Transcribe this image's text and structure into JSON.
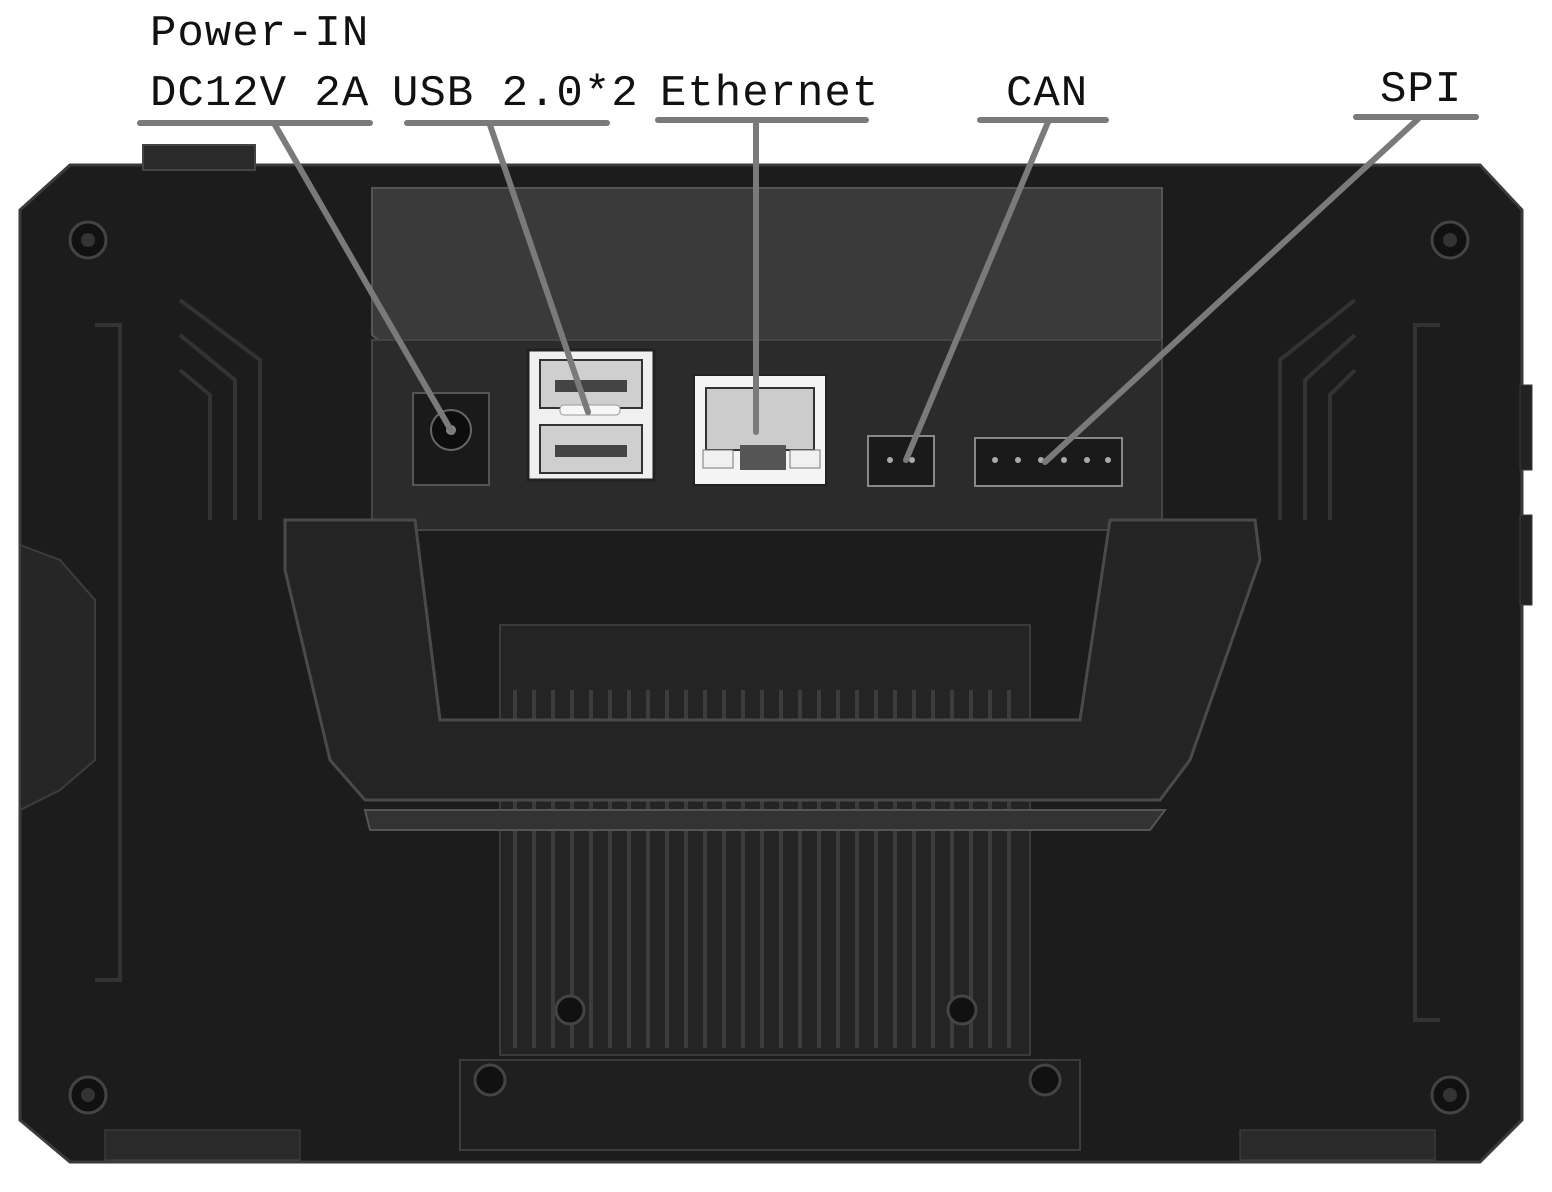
{
  "labels": {
    "power_line1": "Power-IN",
    "power_line2": "DC12V 2A",
    "usb": "USB 2.0*2",
    "ethernet": "Ethernet",
    "can": "CAN",
    "spi": "SPI"
  },
  "colors": {
    "case": "#1c1c1c",
    "case_edge": "#2a2a2a",
    "panel": "#2e2e2e",
    "leader_line": "#7a7a7a",
    "port_white": "#f2f2f2"
  }
}
